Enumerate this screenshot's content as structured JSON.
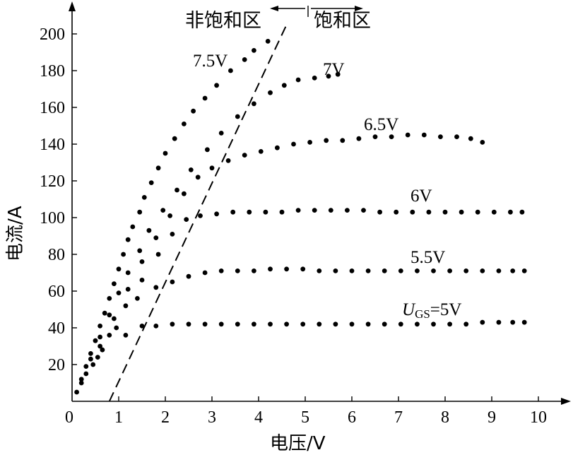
{
  "chart_data": {
    "type": "scatter",
    "xlabel": "电压/V",
    "ylabel": "电流/A",
    "xlim": [
      0,
      10.6
    ],
    "ylim": [
      0,
      210
    ],
    "xticks": [
      "0",
      "1",
      "2",
      "3",
      "4",
      "5",
      "6",
      "7",
      "8",
      "9",
      "10"
    ],
    "yticks": [
      "20",
      "40",
      "60",
      "80",
      "100",
      "120",
      "140",
      "160",
      "180",
      "200"
    ],
    "grid": false,
    "regions": {
      "left": "非饱和区",
      "right": "饱和区"
    },
    "boundary_line": {
      "style": "dashed",
      "points": [
        [
          0.8,
          0
        ],
        [
          4.6,
          205
        ]
      ]
    },
    "series": [
      {
        "label": "7.5V",
        "points": [
          [
            0.1,
            5
          ],
          [
            0.2,
            12
          ],
          [
            0.3,
            19
          ],
          [
            0.4,
            26
          ],
          [
            0.5,
            33
          ],
          [
            0.6,
            41
          ],
          [
            0.7,
            48
          ],
          [
            0.8,
            56
          ],
          [
            0.9,
            64
          ],
          [
            1.0,
            72
          ],
          [
            1.1,
            80
          ],
          [
            1.2,
            88
          ],
          [
            1.3,
            95
          ],
          [
            1.45,
            103
          ],
          [
            1.55,
            111
          ],
          [
            1.7,
            119
          ],
          [
            1.85,
            127
          ],
          [
            2.0,
            135
          ],
          [
            2.2,
            143
          ],
          [
            2.4,
            151
          ],
          [
            2.6,
            158
          ],
          [
            2.85,
            165
          ],
          [
            3.1,
            172
          ],
          [
            3.4,
            180
          ],
          [
            3.7,
            186
          ],
          [
            3.9,
            191
          ],
          [
            4.2,
            196
          ]
        ]
      },
      {
        "label": "7V",
        "points": [
          [
            0.2,
            10
          ],
          [
            0.4,
            23
          ],
          [
            0.6,
            35
          ],
          [
            0.8,
            47
          ],
          [
            1.0,
            59
          ],
          [
            1.2,
            70
          ],
          [
            1.45,
            82
          ],
          [
            1.65,
            93
          ],
          [
            1.95,
            104
          ],
          [
            2.25,
            115
          ],
          [
            2.55,
            126
          ],
          [
            2.9,
            137
          ],
          [
            3.2,
            146
          ],
          [
            3.55,
            155
          ],
          [
            3.9,
            162
          ],
          [
            4.25,
            168
          ],
          [
            4.55,
            172
          ],
          [
            4.85,
            175
          ],
          [
            5.2,
            176
          ],
          [
            5.5,
            177
          ],
          [
            5.7,
            178
          ]
        ]
      },
      {
        "label": "6.5V",
        "points": [
          [
            0.3,
            15
          ],
          [
            0.6,
            30
          ],
          [
            0.9,
            45
          ],
          [
            1.2,
            61
          ],
          [
            1.5,
            76
          ],
          [
            1.8,
            89
          ],
          [
            2.1,
            101
          ],
          [
            2.4,
            113
          ],
          [
            2.7,
            122
          ],
          [
            3.0,
            127
          ],
          [
            3.35,
            131
          ],
          [
            3.7,
            134
          ],
          [
            4.05,
            136
          ],
          [
            4.4,
            138
          ],
          [
            4.75,
            140
          ],
          [
            5.1,
            141
          ],
          [
            5.45,
            142
          ],
          [
            5.8,
            142
          ],
          [
            6.15,
            143
          ],
          [
            6.5,
            144
          ],
          [
            6.85,
            144
          ],
          [
            7.2,
            145
          ],
          [
            7.55,
            145
          ],
          [
            7.9,
            144
          ],
          [
            8.25,
            144
          ],
          [
            8.55,
            143
          ],
          [
            8.8,
            141
          ]
        ]
      },
      {
        "label": "6V",
        "points": [
          [
            0.45,
            20
          ],
          [
            0.8,
            36
          ],
          [
            1.15,
            52
          ],
          [
            1.5,
            66
          ],
          [
            1.85,
            80
          ],
          [
            2.15,
            91
          ],
          [
            2.45,
            99
          ],
          [
            2.75,
            101
          ],
          [
            3.1,
            102
          ],
          [
            3.45,
            103
          ],
          [
            3.8,
            103
          ],
          [
            4.15,
            103
          ],
          [
            4.5,
            103
          ],
          [
            4.85,
            104
          ],
          [
            5.2,
            104
          ],
          [
            5.55,
            104
          ],
          [
            5.9,
            104
          ],
          [
            6.25,
            104
          ],
          [
            6.6,
            103
          ],
          [
            6.95,
            103
          ],
          [
            7.3,
            103
          ],
          [
            7.65,
            103
          ],
          [
            8.0,
            103
          ],
          [
            8.35,
            103
          ],
          [
            8.7,
            103
          ],
          [
            9.05,
            103
          ],
          [
            9.4,
            103
          ],
          [
            9.65,
            103
          ]
        ]
      },
      {
        "label": "5.5V",
        "points": [
          [
            0.55,
            24
          ],
          [
            0.95,
            40
          ],
          [
            1.4,
            56
          ],
          [
            1.8,
            62
          ],
          [
            2.15,
            65
          ],
          [
            2.5,
            68
          ],
          [
            2.85,
            70
          ],
          [
            3.2,
            71
          ],
          [
            3.55,
            71
          ],
          [
            3.9,
            71
          ],
          [
            4.25,
            72
          ],
          [
            4.6,
            72
          ],
          [
            4.95,
            72
          ],
          [
            5.3,
            71
          ],
          [
            5.65,
            71
          ],
          [
            6.0,
            71
          ],
          [
            6.35,
            71
          ],
          [
            6.7,
            71
          ],
          [
            7.05,
            71
          ],
          [
            7.4,
            71
          ],
          [
            7.75,
            71
          ],
          [
            8.1,
            71
          ],
          [
            8.45,
            71
          ],
          [
            8.8,
            71
          ],
          [
            9.15,
            71
          ],
          [
            9.45,
            71
          ],
          [
            9.7,
            71
          ]
        ]
      },
      {
        "label": "UGS=5V",
        "points": [
          [
            0.65,
            28
          ],
          [
            1.15,
            36
          ],
          [
            1.5,
            41
          ],
          [
            1.8,
            41
          ],
          [
            2.15,
            42
          ],
          [
            2.5,
            42
          ],
          [
            2.85,
            42
          ],
          [
            3.2,
            42
          ],
          [
            3.55,
            42
          ],
          [
            3.9,
            42
          ],
          [
            4.25,
            42
          ],
          [
            4.6,
            42
          ],
          [
            4.95,
            42
          ],
          [
            5.3,
            42
          ],
          [
            5.65,
            42
          ],
          [
            6.0,
            42
          ],
          [
            6.35,
            42
          ],
          [
            6.7,
            42
          ],
          [
            7.05,
            42
          ],
          [
            7.4,
            42
          ],
          [
            7.75,
            42
          ],
          [
            8.1,
            42
          ],
          [
            8.45,
            42
          ],
          [
            8.8,
            43
          ],
          [
            9.15,
            43
          ],
          [
            9.45,
            43
          ],
          [
            9.7,
            43
          ]
        ]
      }
    ]
  }
}
